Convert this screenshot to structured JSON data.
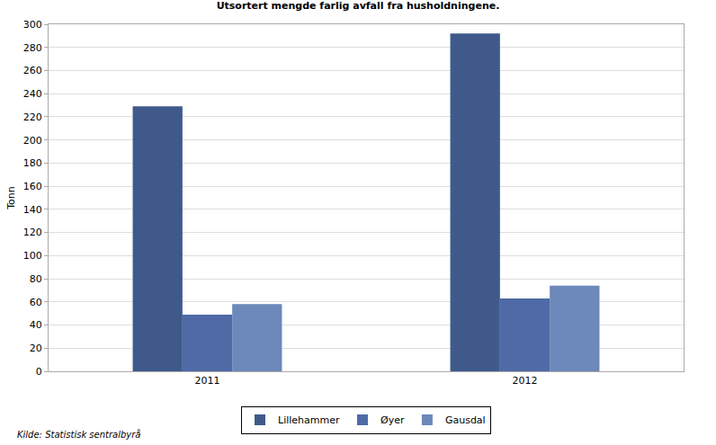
{
  "chart_data": {
    "type": "bar",
    "title": "Utsortert mengde farlig avfall fra husholdningene.",
    "y_label": "Tonn",
    "categories": [
      "2011",
      "2012"
    ],
    "series": [
      {
        "name": "Lillehammer",
        "color": "#3f5a8a",
        "values": [
          229,
          292
        ]
      },
      {
        "name": "Øyer",
        "color": "#4f6aa6",
        "values": [
          49,
          63
        ]
      },
      {
        "name": "Gausdal",
        "color": "#6d88ba",
        "values": [
          58,
          74
        ]
      }
    ],
    "ylim": [
      0,
      300
    ],
    "yticks": [
      0,
      20,
      40,
      60,
      80,
      100,
      120,
      140,
      160,
      180,
      200,
      220,
      240,
      260,
      280,
      300
    ],
    "grid": true,
    "legend": "bottom",
    "annotations": [
      "Kilde: Statistisk sentralbyrå"
    ]
  }
}
